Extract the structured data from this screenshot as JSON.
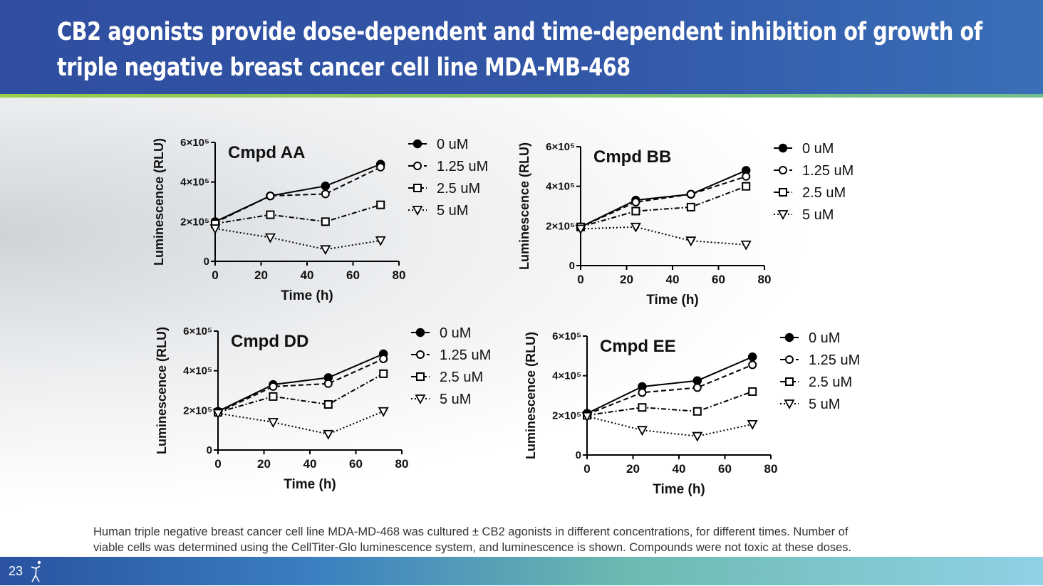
{
  "slide": {
    "title_line1": "CB2 agonists provide dose-dependent and time-dependent inhibition of growth of",
    "title_line2": "triple negative breast cancer cell line MDA-MB-468",
    "caption_line1": "Human triple negative breast cancer cell line MDA-MD-468 was cultured ± CB2 agonists in different concentrations, for different times. Number of",
    "caption_line2": "viable cells was determined using the CellTiter-Glo luminescence system, and luminescence is shown.  Compounds were not toxic at these doses.",
    "page_number": "23",
    "logo_icon": "person-figure-icon"
  },
  "chart_data": [
    {
      "type": "line",
      "title": "Cmpd AA",
      "xlabel": "Time (h)",
      "ylabel": "Luminescence (RLU)",
      "xlim": [
        0,
        80
      ],
      "ylim": [
        0,
        600000
      ],
      "xticks": [
        "0",
        "20",
        "40",
        "60",
        "80"
      ],
      "yticks": [
        "0",
        "2×10⁵",
        "4×10⁵",
        "6×10⁵"
      ],
      "x": [
        0,
        24,
        48,
        72
      ],
      "series": [
        {
          "name": "0 uM",
          "marker": "filled-circle",
          "line": "solid",
          "values": [
            200000,
            330000,
            380000,
            490000
          ]
        },
        {
          "name": "1.25 uM",
          "marker": "open-circle",
          "line": "dashed",
          "values": [
            195000,
            330000,
            340000,
            475000
          ]
        },
        {
          "name": "2.5 uM",
          "marker": "open-square",
          "line": "dashdot",
          "values": [
            190000,
            235000,
            200000,
            285000
          ]
        },
        {
          "name": "5 uM",
          "marker": "open-triangle-down",
          "line": "dotted",
          "values": [
            165000,
            120000,
            60000,
            105000
          ]
        }
      ]
    },
    {
      "type": "line",
      "title": "Cmpd BB",
      "xlabel": "Time (h)",
      "ylabel": "Luminescence (RLU)",
      "xlim": [
        0,
        80
      ],
      "ylim": [
        0,
        600000
      ],
      "xticks": [
        "0",
        "20",
        "40",
        "60",
        "80"
      ],
      "yticks": [
        "0",
        "2×10⁵",
        "4×10⁵",
        "6×10⁵"
      ],
      "x": [
        0,
        24,
        48,
        72
      ],
      "series": [
        {
          "name": "0 uM",
          "marker": "filled-circle",
          "line": "solid",
          "values": [
            195000,
            330000,
            360000,
            480000
          ]
        },
        {
          "name": "1.25 uM",
          "marker": "open-circle",
          "line": "dashed",
          "values": [
            195000,
            320000,
            360000,
            450000
          ]
        },
        {
          "name": "2.5 uM",
          "marker": "open-square",
          "line": "dashdot",
          "values": [
            195000,
            275000,
            295000,
            400000
          ]
        },
        {
          "name": "5 uM",
          "marker": "open-triangle-down",
          "line": "dotted",
          "values": [
            185000,
            195000,
            125000,
            105000
          ]
        }
      ]
    },
    {
      "type": "line",
      "title": "Cmpd DD",
      "xlabel": "Time (h)",
      "ylabel": "Luminescence (RLU)",
      "xlim": [
        0,
        80
      ],
      "ylim": [
        0,
        600000
      ],
      "xticks": [
        "0",
        "20",
        "40",
        "60",
        "80"
      ],
      "yticks": [
        "0",
        "2×10⁵",
        "4×10⁵",
        "6×10⁵"
      ],
      "x": [
        0,
        24,
        48,
        72
      ],
      "series": [
        {
          "name": "0 uM",
          "marker": "filled-circle",
          "line": "solid",
          "values": [
            195000,
            330000,
            365000,
            485000
          ]
        },
        {
          "name": "1.25 uM",
          "marker": "open-circle",
          "line": "dashed",
          "values": [
            190000,
            320000,
            335000,
            460000
          ]
        },
        {
          "name": "2.5 uM",
          "marker": "open-square",
          "line": "dashdot",
          "values": [
            190000,
            270000,
            230000,
            385000
          ]
        },
        {
          "name": "5 uM",
          "marker": "open-triangle-down",
          "line": "dotted",
          "values": [
            185000,
            140000,
            80000,
            195000
          ]
        }
      ]
    },
    {
      "type": "line",
      "title": "Cmpd EE",
      "xlabel": "Time (h)",
      "ylabel": "Luminescence (RLU)",
      "xlim": [
        0,
        80
      ],
      "ylim": [
        0,
        600000
      ],
      "xticks": [
        "0",
        "20",
        "40",
        "60",
        "80"
      ],
      "yticks": [
        "0",
        "2×10⁵",
        "4×10⁵",
        "6×10⁵"
      ],
      "x": [
        0,
        24,
        48,
        72
      ],
      "series": [
        {
          "name": "0 uM",
          "marker": "filled-circle",
          "line": "solid",
          "values": [
            210000,
            345000,
            375000,
            495000
          ]
        },
        {
          "name": "1.25 uM",
          "marker": "open-circle",
          "line": "dashed",
          "values": [
            205000,
            315000,
            340000,
            455000
          ]
        },
        {
          "name": "2.5 uM",
          "marker": "open-square",
          "line": "dashdot",
          "values": [
            200000,
            240000,
            220000,
            320000
          ]
        },
        {
          "name": "5 uM",
          "marker": "open-triangle-down",
          "line": "dotted",
          "values": [
            195000,
            125000,
            95000,
            155000
          ]
        }
      ]
    }
  ]
}
